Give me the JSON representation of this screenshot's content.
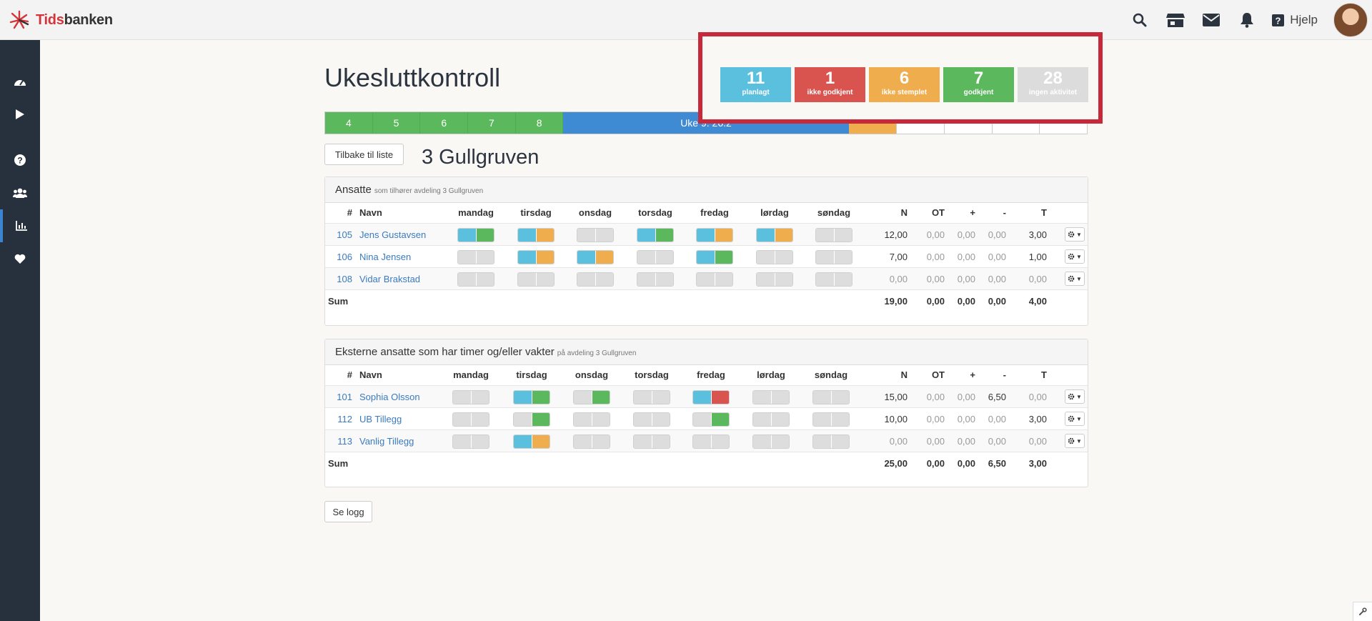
{
  "app": {
    "brand_a": "Tids",
    "brand_b": "banken",
    "help_label": "Hjelp"
  },
  "page": {
    "title": "Ukesluttkontroll",
    "department": "3 Gullgruven"
  },
  "weeks": [
    {
      "label": "4",
      "state": "green"
    },
    {
      "label": "5",
      "state": "green"
    },
    {
      "label": "6",
      "state": "green"
    },
    {
      "label": "7",
      "state": "green"
    },
    {
      "label": "8",
      "state": "green"
    },
    {
      "label": "Uke 9: 26.2",
      "state": "blue"
    },
    {
      "label": "",
      "state": "orange"
    },
    {
      "label": "",
      "state": "empty"
    },
    {
      "label": "",
      "state": "empty"
    },
    {
      "label": "",
      "state": "empty"
    },
    {
      "label": "",
      "state": "empty"
    }
  ],
  "stats": [
    {
      "num": "11",
      "label": "planlagt",
      "color": "#5bc0de"
    },
    {
      "num": "1",
      "label": "ikke godkjent",
      "color": "#d9534f"
    },
    {
      "num": "6",
      "label": "ikke stemplet",
      "color": "#f0ad4e"
    },
    {
      "num": "7",
      "label": "godkjent",
      "color": "#5cb85c"
    },
    {
      "num": "28",
      "label": "ingen aktivitet",
      "color": "#dcdcdc"
    }
  ],
  "buttons": {
    "back": "Tilbake til liste",
    "log": "Se logg"
  },
  "colors": {
    "blue": "#5bc0de",
    "orange": "#f0ad4e",
    "green": "#5cb85c",
    "red": "#d9534f",
    "gray": "#dddddd"
  },
  "columns": {
    "num": "#",
    "name": "Navn",
    "days": [
      "mandag",
      "tirsdag",
      "onsdag",
      "torsdag",
      "fredag",
      "lørdag",
      "søndag"
    ],
    "totals": [
      "N",
      "OT",
      "+",
      "-",
      "T"
    ]
  },
  "sections": [
    {
      "title": "Ansatte",
      "subtitle": "som tilhører avdeling 3 Gullgruven",
      "rows": [
        {
          "num": "105",
          "name": "Jens Gustavsen",
          "days": [
            [
              "blue",
              "green"
            ],
            [
              "blue",
              "orange"
            ],
            [
              "gray",
              "gray"
            ],
            [
              "blue",
              "green"
            ],
            [
              "blue",
              "orange"
            ],
            [
              "blue",
              "orange"
            ],
            [
              "gray",
              "gray"
            ]
          ],
          "totals": [
            "12,00",
            "0,00",
            "0,00",
            "0,00",
            "3,00"
          ]
        },
        {
          "num": "106",
          "name": "Nina Jensen",
          "days": [
            [
              "gray",
              "gray"
            ],
            [
              "blue",
              "orange"
            ],
            [
              "blue",
              "orange"
            ],
            [
              "gray",
              "gray"
            ],
            [
              "blue",
              "green"
            ],
            [
              "gray",
              "gray"
            ],
            [
              "gray",
              "gray"
            ]
          ],
          "totals": [
            "7,00",
            "0,00",
            "0,00",
            "0,00",
            "1,00"
          ]
        },
        {
          "num": "108",
          "name": "Vidar Brakstad",
          "days": [
            [
              "gray",
              "gray"
            ],
            [
              "gray",
              "gray"
            ],
            [
              "gray",
              "gray"
            ],
            [
              "gray",
              "gray"
            ],
            [
              "gray",
              "gray"
            ],
            [
              "gray",
              "gray"
            ],
            [
              "gray",
              "gray"
            ]
          ],
          "totals": [
            "0,00",
            "0,00",
            "0,00",
            "0,00",
            "0,00"
          ]
        }
      ],
      "sum_label": "Sum",
      "sum": [
        "19,00",
        "0,00",
        "0,00",
        "0,00",
        "4,00"
      ]
    },
    {
      "title": "Eksterne ansatte som har timer og/eller vakter",
      "subtitle": "på avdeling 3 Gullgruven",
      "rows": [
        {
          "num": "101",
          "name": "Sophia Olsson",
          "days": [
            [
              "gray",
              "gray"
            ],
            [
              "blue",
              "green"
            ],
            [
              "gray",
              "green"
            ],
            [
              "gray",
              "gray"
            ],
            [
              "blue",
              "red"
            ],
            [
              "gray",
              "gray"
            ],
            [
              "gray",
              "gray"
            ]
          ],
          "totals": [
            "15,00",
            "0,00",
            "0,00",
            "6,50",
            "0,00"
          ]
        },
        {
          "num": "112",
          "name": "UB Tillegg",
          "days": [
            [
              "gray",
              "gray"
            ],
            [
              "gray",
              "green"
            ],
            [
              "gray",
              "gray"
            ],
            [
              "gray",
              "gray"
            ],
            [
              "gray",
              "green"
            ],
            [
              "gray",
              "gray"
            ],
            [
              "gray",
              "gray"
            ]
          ],
          "totals": [
            "10,00",
            "0,00",
            "0,00",
            "0,00",
            "3,00"
          ]
        },
        {
          "num": "113",
          "name": "Vanlig Tillegg",
          "days": [
            [
              "gray",
              "gray"
            ],
            [
              "blue",
              "orange"
            ],
            [
              "gray",
              "gray"
            ],
            [
              "gray",
              "gray"
            ],
            [
              "gray",
              "gray"
            ],
            [
              "gray",
              "gray"
            ],
            [
              "gray",
              "gray"
            ]
          ],
          "totals": [
            "0,00",
            "0,00",
            "0,00",
            "0,00",
            "0,00"
          ]
        }
      ],
      "sum_label": "Sum",
      "sum": [
        "25,00",
        "0,00",
        "0,00",
        "6,50",
        "3,00"
      ]
    }
  ]
}
